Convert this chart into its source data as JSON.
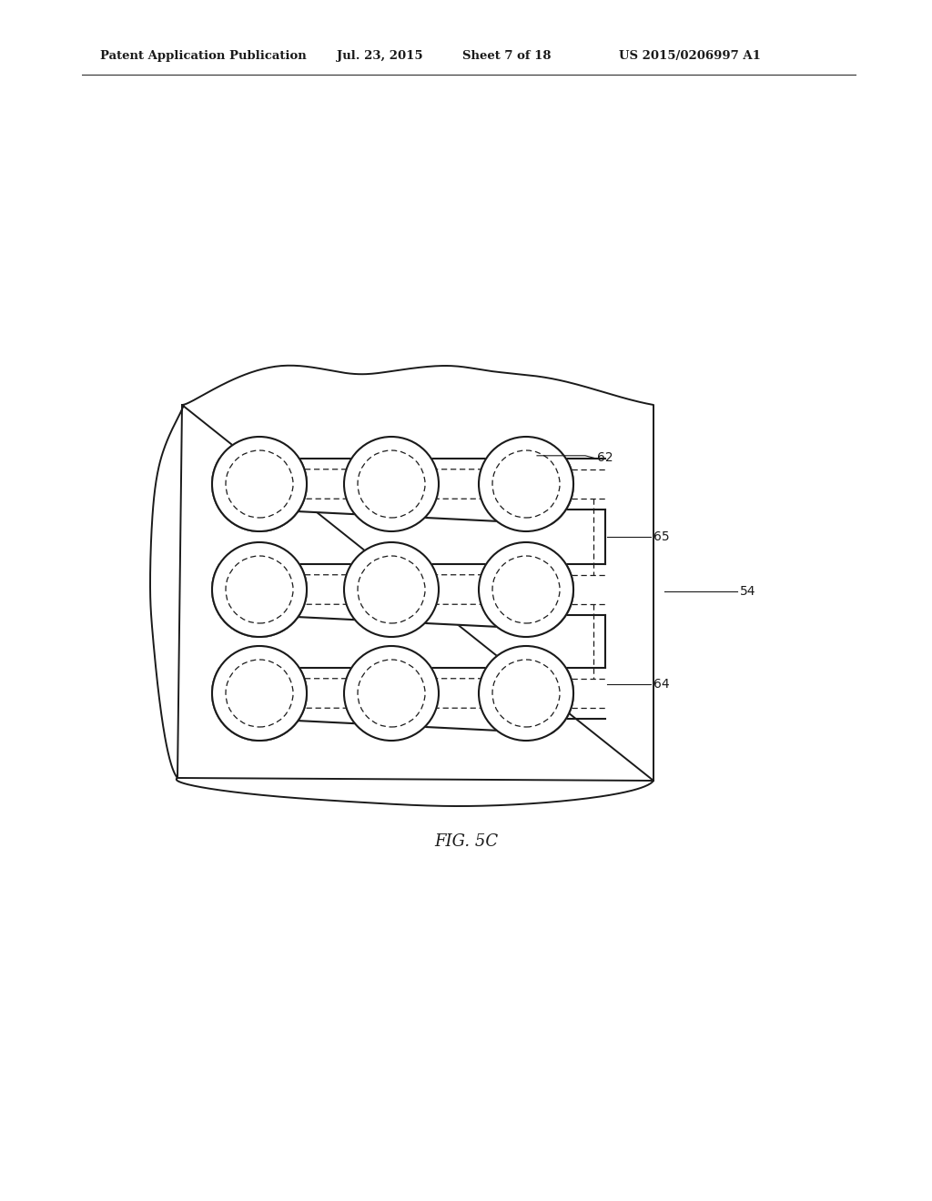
{
  "bg_color": "#ffffff",
  "line_color": "#1a1a1a",
  "title_header": "Patent Application Publication",
  "date_text": "Jul. 23, 2015",
  "sheet_text": "Sheet 7 of 18",
  "patent_text": "US 2015/0206997 A1",
  "fig_label": "FIG. 5C",
  "label_62": "62",
  "label_65": "65",
  "label_64": "64",
  "label_54": "54",
  "header_fontsize": 9.5,
  "fig_label_fontsize": 13
}
